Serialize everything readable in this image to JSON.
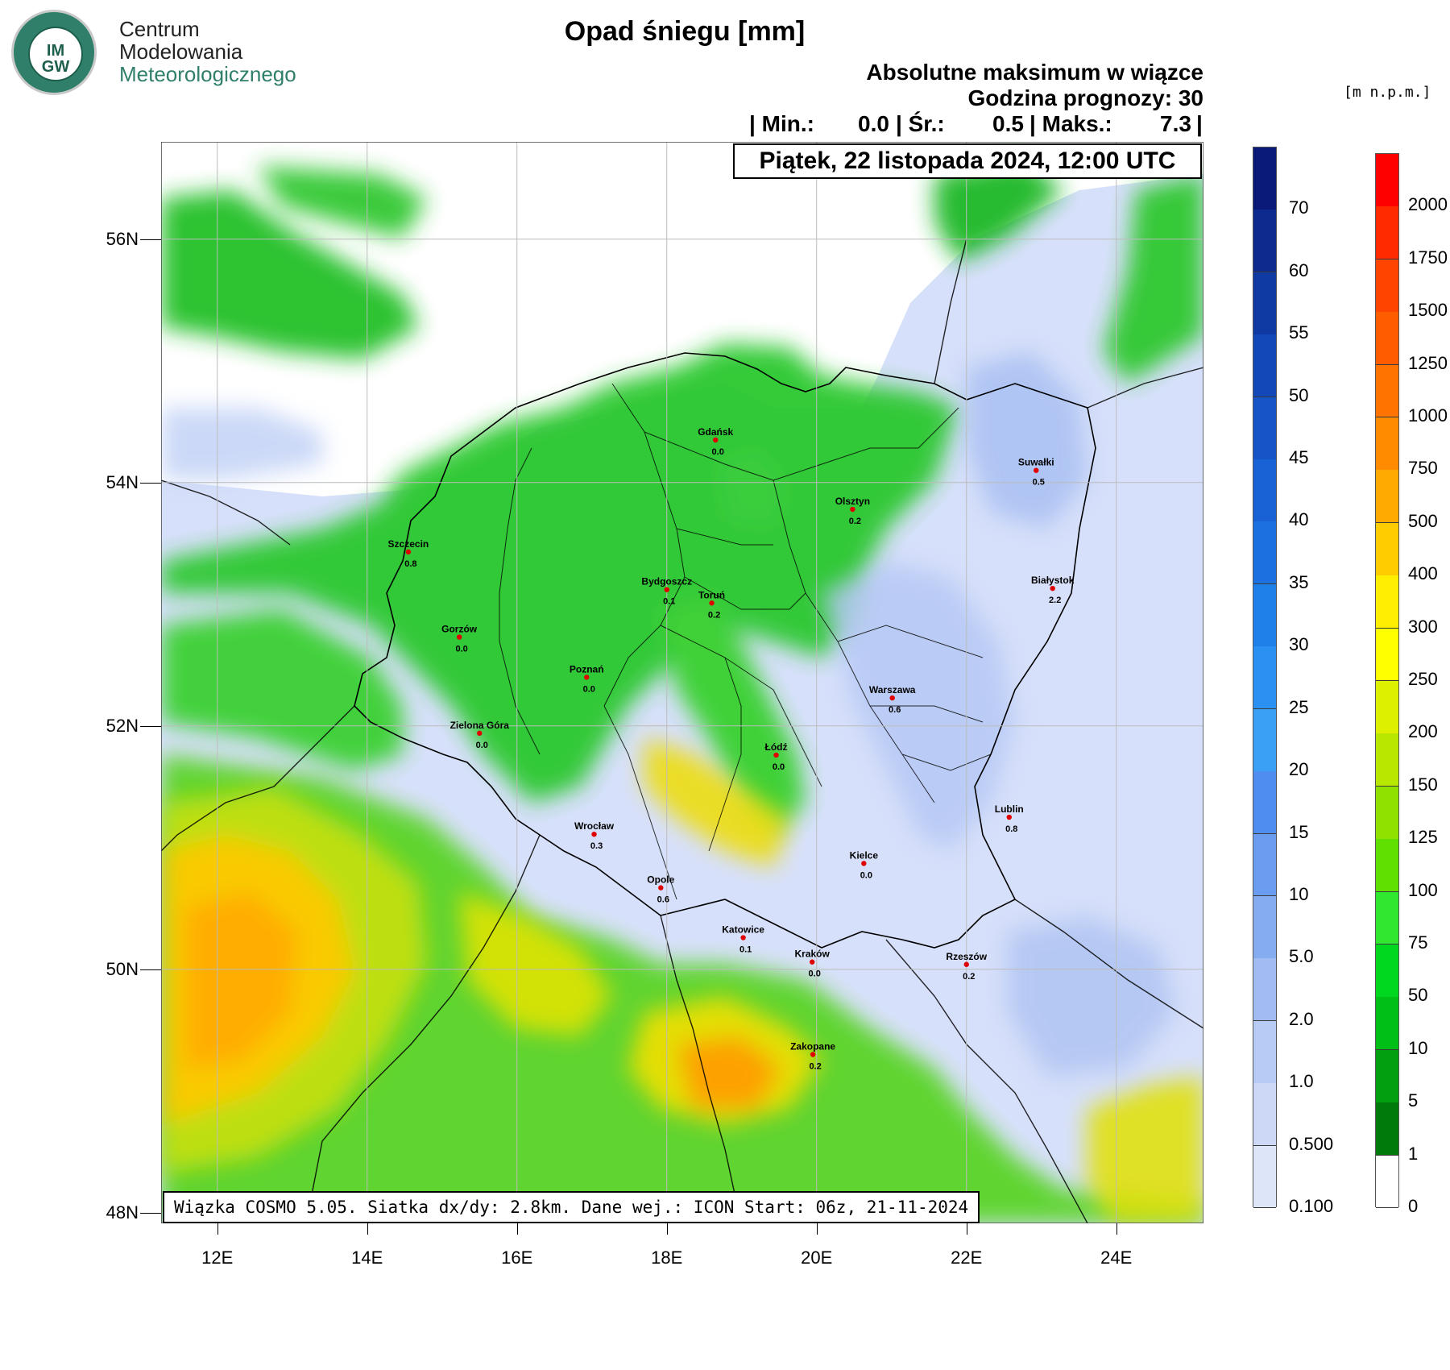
{
  "logo": {
    "seal_text": "IM GW",
    "line1": "Centrum",
    "line2": "Modelowania",
    "line3": "Meteorologicznego"
  },
  "header": {
    "title": "Opad śniegu [mm]",
    "subtitle1": "Absolutne maksimum w wiązce",
    "subtitle2": "Godzina prognozy: 30",
    "stats": {
      "min_label": "| Min.:",
      "min_value": "0.0",
      "avg_label": "| Śr.:",
      "avg_value": "0.5",
      "max_label": "| Maks.:",
      "max_value": "7.3",
      "end": "|"
    },
    "date": "Piątek, 22 listopada 2024, 12:00 UTC"
  },
  "footer": "Wiązka COSMO 5.05. Siatka dx/dy: 2.8km. Dane wej.: ICON Start: 06z, 21-11-2024",
  "axes": {
    "lat_labels": [
      "56N",
      "54N",
      "52N",
      "50N",
      "48N"
    ],
    "lon_labels": [
      "12E",
      "14E",
      "16E",
      "18E",
      "20E",
      "22E",
      "24E"
    ]
  },
  "snow_colorbar": {
    "ticks": [
      "70",
      "60",
      "55",
      "50",
      "45",
      "40",
      "35",
      "30",
      "25",
      "20",
      "15",
      "10",
      "5.0",
      "2.0",
      "1.0",
      "0.500",
      "0.100"
    ],
    "colors": [
      "#0a1a78",
      "#0d2a8e",
      "#0f3aa4",
      "#1248b8",
      "#1555c8",
      "#1862d6",
      "#1c70e0",
      "#2080ea",
      "#2a90f2",
      "#3aa0f6",
      "#4f8ef0",
      "#6a9cf0",
      "#86acf0",
      "#a2bcf2",
      "#b8cbf4",
      "#cdd8f6",
      "#dde5f8"
    ]
  },
  "height_colorbar": {
    "unit": "[m n.p.m.]",
    "ticks": [
      "2000",
      "1750",
      "1500",
      "1250",
      "1000",
      "750",
      "500",
      "400",
      "300",
      "250",
      "200",
      "150",
      "125",
      "100",
      "75",
      "50",
      "10",
      "5",
      "1",
      "0"
    ],
    "colors": [
      "#ff0000",
      "#ff2a00",
      "#ff4400",
      "#ff5c00",
      "#ff7400",
      "#ff8c00",
      "#ffaa00",
      "#ffcc00",
      "#ffee00",
      "#ffff00",
      "#ddf000",
      "#b8e800",
      "#90e000",
      "#60e000",
      "#30e830",
      "#00d820",
      "#00c018",
      "#00a010",
      "#007a0a",
      "#ffffff"
    ]
  },
  "cities": [
    {
      "name": "Gdańsk",
      "value": "0.0",
      "lon": 18.65,
      "lat": 54.35
    },
    {
      "name": "Suwałki",
      "value": "0.5",
      "lon": 22.93,
      "lat": 54.1
    },
    {
      "name": "Olsztyn",
      "value": "0.2",
      "lon": 20.48,
      "lat": 53.78
    },
    {
      "name": "Szczecin",
      "value": "0.8",
      "lon": 14.55,
      "lat": 53.43
    },
    {
      "name": "Białystok",
      "value": "2.2",
      "lon": 23.15,
      "lat": 53.13
    },
    {
      "name": "Bydgoszcz",
      "value": "0.1",
      "lon": 18.0,
      "lat": 53.12
    },
    {
      "name": "Toruń",
      "value": "0.2",
      "lon": 18.6,
      "lat": 53.01
    },
    {
      "name": "Gorzów",
      "value": "0.0",
      "lon": 15.23,
      "lat": 52.73
    },
    {
      "name": "Poznań",
      "value": "0.0",
      "lon": 16.93,
      "lat": 52.4
    },
    {
      "name": "Warszawa",
      "value": "0.6",
      "lon": 21.01,
      "lat": 52.23
    },
    {
      "name": "Zielona Góra",
      "value": "0.0",
      "lon": 15.5,
      "lat": 51.94
    },
    {
      "name": "Łódź",
      "value": "0.0",
      "lon": 19.46,
      "lat": 51.76
    },
    {
      "name": "Lublin",
      "value": "0.8",
      "lon": 22.57,
      "lat": 51.25
    },
    {
      "name": "Wrocław",
      "value": "0.3",
      "lon": 17.03,
      "lat": 51.11
    },
    {
      "name": "Kielce",
      "value": "0.0",
      "lon": 20.63,
      "lat": 50.87
    },
    {
      "name": "Opole",
      "value": "0.6",
      "lon": 17.92,
      "lat": 50.67
    },
    {
      "name": "Katowice",
      "value": "0.1",
      "lon": 19.02,
      "lat": 50.26
    },
    {
      "name": "Kraków",
      "value": "0.0",
      "lon": 19.94,
      "lat": 50.06
    },
    {
      "name": "Rzeszów",
      "value": "0.2",
      "lon": 22.0,
      "lat": 50.04
    },
    {
      "name": "Zakopane",
      "value": "0.2",
      "lon": 19.95,
      "lat": 49.3
    }
  ]
}
